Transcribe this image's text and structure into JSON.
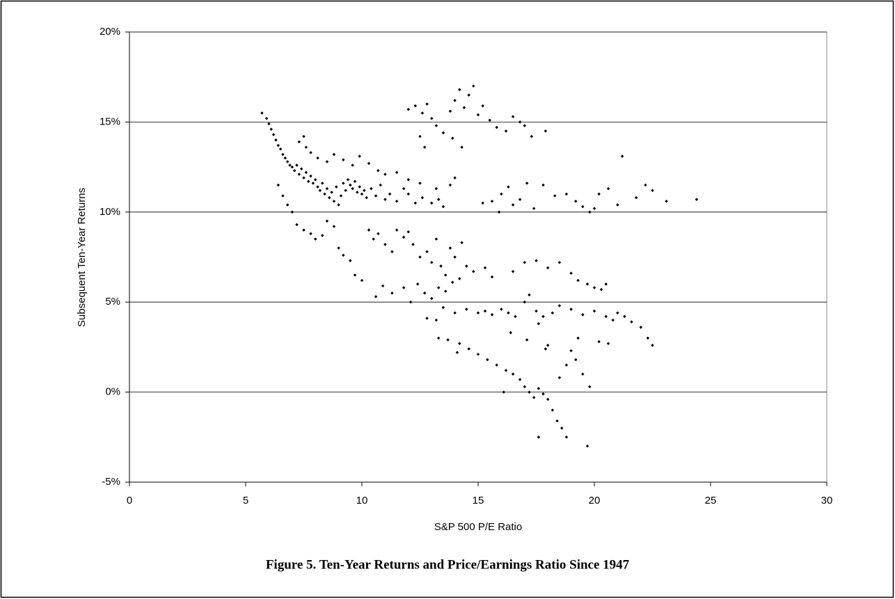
{
  "chart_data": {
    "type": "scatter",
    "x_label": "S&P 500 P/E Ratio",
    "y_label": "Subsequent Ten-Year Returns",
    "caption": "Figure 5.  Ten-Year Returns and Price/Earnings Ratio Since 1947",
    "xlim": [
      0,
      30
    ],
    "xticks": [
      0,
      5,
      10,
      15,
      20,
      25,
      30
    ],
    "ylim": [
      -5,
      20
    ],
    "yticks": [
      {
        "value": -5,
        "label": "-5%"
      },
      {
        "value": 0,
        "label": "0%"
      },
      {
        "value": 5,
        "label": "5%"
      },
      {
        "value": 10,
        "label": "10%"
      },
      {
        "value": 15,
        "label": "15%"
      },
      {
        "value": 20,
        "label": "20%"
      }
    ],
    "grid": true,
    "color": "#000000",
    "x": [
      5.7,
      5.9,
      6.0,
      6.1,
      6.2,
      6.3,
      6.4,
      6.5,
      6.6,
      6.7,
      6.8,
      6.9,
      7.0,
      7.1,
      7.2,
      7.3,
      7.4,
      7.5,
      7.6,
      7.7,
      7.8,
      7.9,
      8.0,
      8.1,
      8.2,
      8.3,
      8.4,
      8.5,
      8.6,
      8.7,
      8.8,
      8.9,
      9.0,
      9.1,
      9.2,
      9.3,
      9.4,
      9.5,
      9.6,
      9.7,
      9.8,
      9.9,
      10.0,
      10.1,
      10.2,
      10.4,
      10.6,
      10.8,
      11.0,
      11.2,
      11.5,
      11.8,
      12.0,
      12.3,
      12.6,
      13.0,
      13.3,
      13.5,
      7.3,
      7.5,
      7.6,
      7.8,
      8.1,
      8.5,
      8.8,
      9.2,
      9.6,
      9.9,
      10.3,
      10.7,
      11.0,
      11.5,
      12.0,
      12.5,
      13.2,
      13.8,
      14.0,
      6.4,
      6.6,
      6.8,
      7.0,
      7.2,
      7.5,
      7.8,
      8.0,
      8.3,
      8.5,
      8.8,
      9.0,
      9.2,
      9.5,
      9.7,
      10.0,
      10.3,
      10.5,
      10.7,
      11.0,
      11.3,
      11.5,
      11.8,
      12.0,
      12.2,
      12.5,
      12.8,
      13.0,
      13.2,
      13.4,
      13.6,
      13.8,
      14.0,
      14.3,
      14.5,
      10.6,
      10.9,
      11.3,
      11.8,
      12.1,
      12.4,
      12.7,
      13.0,
      13.3,
      13.6,
      13.9,
      14.2,
      14.8,
      15.3,
      15.6,
      13.2,
      13.5,
      14.0,
      14.5,
      15.0,
      15.3,
      15.6,
      16.0,
      16.3,
      16.6,
      17.0,
      17.2,
      17.5,
      17.6,
      17.8,
      18.2,
      18.5,
      19.0,
      19.5,
      20.0,
      20.5,
      20.8,
      21.0,
      21.3,
      21.6,
      22.0,
      22.3,
      22.5,
      16.5,
      17.0,
      17.5,
      18.0,
      18.5,
      19.0,
      19.3,
      19.7,
      20.0,
      20.3,
      20.5,
      13.3,
      13.7,
      14.2,
      14.6,
      15.0,
      15.4,
      15.8,
      16.2,
      16.5,
      16.8,
      17.0,
      17.2,
      17.4,
      17.6,
      17.8,
      18.0,
      18.2,
      18.4,
      18.6,
      18.8,
      17.6,
      19.7,
      18.5,
      18.8,
      19.0,
      19.2,
      19.5,
      19.8,
      16.1,
      18.0,
      19.3,
      20.2,
      20.6,
      12.8,
      14.1,
      16.4,
      17.1,
      17.9,
      12.0,
      12.3,
      12.6,
      12.8,
      13.0,
      13.2,
      12.5,
      12.7,
      13.5,
      13.8,
      14.0,
      14.2,
      14.4,
      14.6,
      14.8,
      15.0,
      15.2,
      15.5,
      15.8,
      16.2,
      16.5,
      16.8,
      17.0,
      17.3,
      17.9,
      14.3,
      13.9,
      15.2,
      15.6,
      16.0,
      16.3,
      16.5,
      16.8,
      17.1,
      17.4,
      17.8,
      18.3,
      18.8,
      19.2,
      19.5,
      19.8,
      20.2,
      20.6,
      21.0,
      21.2,
      21.8,
      22.2,
      22.5,
      23.1,
      24.4,
      15.9,
      20.0
    ],
    "values": [
      15.5,
      15.2,
      14.9,
      14.6,
      14.3,
      14.0,
      13.7,
      13.5,
      13.2,
      13.0,
      12.8,
      12.6,
      12.5,
      12.3,
      12.6,
      12.1,
      12.4,
      11.9,
      12.2,
      11.7,
      12.0,
      11.6,
      11.8,
      11.4,
      11.2,
      11.6,
      11.0,
      11.3,
      10.8,
      11.1,
      10.6,
      11.4,
      10.4,
      10.9,
      11.6,
      11.2,
      11.8,
      11.5,
      11.3,
      11.7,
      11.1,
      11.4,
      11.0,
      11.2,
      10.8,
      11.3,
      10.9,
      11.5,
      10.7,
      11.0,
      10.6,
      11.3,
      11.0,
      10.5,
      10.8,
      10.5,
      10.7,
      10.3,
      13.9,
      14.2,
      13.6,
      13.3,
      13.0,
      12.8,
      13.2,
      12.9,
      12.6,
      13.1,
      12.7,
      12.3,
      12.1,
      12.2,
      11.8,
      11.6,
      11.3,
      11.5,
      11.9,
      11.5,
      10.9,
      10.4,
      10.0,
      9.3,
      9.0,
      8.8,
      8.5,
      8.7,
      9.5,
      9.2,
      8.0,
      7.6,
      7.3,
      6.5,
      6.2,
      9.0,
      8.5,
      8.8,
      8.2,
      7.8,
      9.0,
      8.6,
      8.9,
      8.2,
      7.5,
      7.8,
      7.2,
      8.5,
      7.0,
      6.5,
      8.0,
      7.5,
      8.3,
      7.0,
      5.3,
      5.9,
      5.5,
      5.8,
      5.0,
      6.0,
      5.5,
      5.2,
      5.8,
      5.6,
      6.1,
      6.3,
      6.7,
      6.9,
      6.4,
      4.0,
      4.7,
      4.4,
      4.6,
      4.4,
      4.5,
      4.3,
      4.6,
      4.4,
      4.2,
      5.0,
      5.4,
      4.5,
      3.8,
      4.2,
      4.4,
      4.8,
      4.6,
      4.3,
      4.5,
      4.2,
      4.0,
      4.4,
      4.2,
      3.9,
      3.6,
      3.0,
      2.6,
      6.7,
      7.2,
      7.3,
      6.9,
      7.2,
      6.6,
      6.2,
      6.0,
      5.8,
      5.7,
      6.0,
      3.0,
      2.9,
      2.7,
      2.4,
      2.1,
      1.8,
      1.5,
      1.2,
      1.0,
      0.7,
      0.3,
      0.0,
      -0.3,
      0.2,
      -0.1,
      -0.4,
      -1.0,
      -1.6,
      -2.0,
      -2.5,
      -2.5,
      -3.0,
      0.8,
      1.5,
      2.3,
      1.8,
      1.0,
      0.3,
      0.0,
      2.6,
      3.0,
      2.8,
      2.7,
      4.1,
      2.2,
      3.3,
      2.9,
      2.4,
      15.7,
      15.9,
      15.5,
      16.0,
      15.2,
      14.8,
      14.2,
      13.6,
      14.4,
      15.6,
      16.2,
      16.8,
      15.8,
      16.5,
      17.0,
      15.4,
      15.9,
      15.1,
      14.7,
      14.5,
      15.3,
      15.0,
      14.8,
      14.2,
      14.5,
      13.6,
      14.1,
      10.5,
      10.6,
      11.0,
      11.4,
      10.4,
      10.7,
      11.6,
      10.2,
      11.5,
      10.9,
      11.0,
      10.6,
      10.3,
      10.0,
      11.0,
      11.3,
      10.4,
      13.1,
      10.8,
      11.5,
      11.2,
      10.6,
      10.7,
      10.0,
      10.2
    ]
  }
}
